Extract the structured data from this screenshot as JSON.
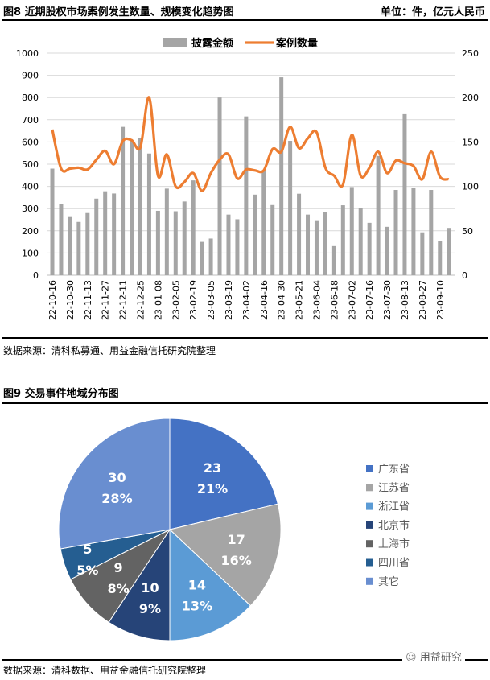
{
  "fig8": {
    "title": "图8  近期股权市场案例发生数量、规模变化趋势图",
    "unit": "单位：件，亿元人民币",
    "source": "数据来源：清科私募通、用益金融信托研究院整理"
  },
  "fig9": {
    "title": "图9  交易事件地域分布图",
    "source": "数据来源：清科数据、用益金融信托研究院整理"
  },
  "watermark": "用益研究",
  "chart_data": [
    {
      "type": "bar+line",
      "title": "",
      "x_tick_labels": [
        "22-10-16",
        "",
        "22-10-30",
        "",
        "22-11-13",
        "",
        "22-11-27",
        "",
        "22-12-11",
        "",
        "22-12-25",
        "",
        "23-01-08",
        "",
        "23-02-05",
        "",
        "23-02-19",
        "",
        "23-03-05",
        "",
        "23-03-19",
        "",
        "23-04-02",
        "",
        "23-04-16",
        "",
        "23-04-30",
        "",
        "23-05-21",
        "",
        "23-06-04",
        "",
        "23-06-18",
        "",
        "23-07-02",
        "",
        "23-07-16",
        "",
        "23-07-30",
        "",
        "23-08-13",
        "",
        "23-08-27",
        "",
        "23-09-10",
        ""
      ],
      "y_left": {
        "ticks": [
          0,
          100,
          200,
          300,
          400,
          500,
          600,
          700,
          800,
          900,
          1000
        ],
        "range": [
          0,
          1000
        ]
      },
      "y_right": {
        "ticks": [
          0,
          50,
          100,
          150,
          200,
          250
        ],
        "range": [
          0,
          250
        ]
      },
      "legend_position": "top",
      "grid": true,
      "series": [
        {
          "name": "披露金额",
          "type": "bar",
          "axis": "left",
          "color": "#A5A5A5",
          "values": [
            480,
            320,
            262,
            240,
            280,
            345,
            378,
            368,
            668,
            605,
            617,
            548,
            290,
            390,
            288,
            332,
            427,
            150,
            165,
            800,
            273,
            252,
            715,
            363,
            473,
            316,
            891,
            605,
            367,
            273,
            244,
            283,
            131,
            315,
            397,
            302,
            236,
            537,
            218,
            384,
            725,
            393,
            193,
            384,
            153,
            213
          ]
        },
        {
          "name": "案例数量",
          "type": "line",
          "axis": "right",
          "color": "#ED7D31",
          "values": [
            164,
            120,
            120,
            121,
            119,
            130,
            140,
            125,
            151,
            152,
            144,
            200,
            112,
            136,
            100,
            105,
            115,
            95,
            115,
            130,
            136,
            109,
            119,
            118,
            118,
            142,
            139,
            167,
            143,
            154,
            161,
            121,
            112,
            102,
            158,
            112,
            121,
            139,
            115,
            129,
            126,
            123,
            108,
            139,
            111,
            108
          ]
        }
      ]
    },
    {
      "type": "pie",
      "title": "",
      "legend_position": "right",
      "slices": [
        {
          "name": "广东省",
          "value": 23,
          "percent": "21%",
          "color": "#4472C4"
        },
        {
          "name": "江苏省",
          "value": 17,
          "percent": "16%",
          "color": "#A5A5A5"
        },
        {
          "name": "浙江省",
          "value": 14,
          "percent": "13%",
          "color": "#5B9BD5"
        },
        {
          "name": "北京市",
          "value": 10,
          "percent": "9%",
          "color": "#264478"
        },
        {
          "name": "上海市",
          "value": 9,
          "percent": "8%",
          "color": "#636363"
        },
        {
          "name": "四川省",
          "value": 5,
          "percent": "5%",
          "color": "#255E91"
        },
        {
          "name": "其它",
          "value": 30,
          "percent": "28%",
          "color": "#698ED0"
        }
      ]
    }
  ]
}
